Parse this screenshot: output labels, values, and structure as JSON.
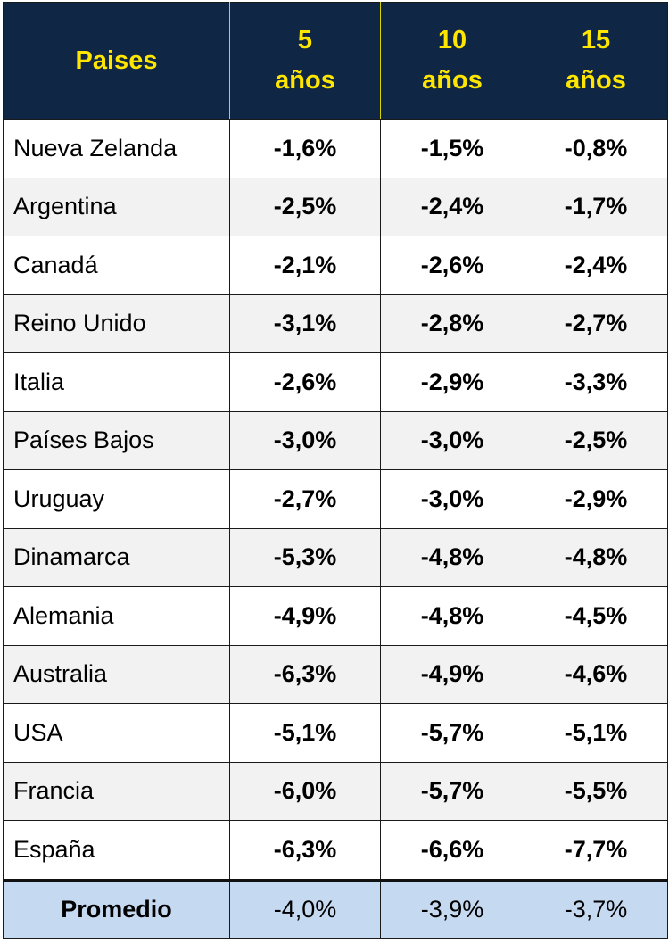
{
  "chart_data": {
    "type": "table",
    "columns": [
      "Paises",
      "5 años",
      "10 años",
      "15 años"
    ],
    "header": {
      "country": "Paises",
      "y5": [
        "5",
        "años"
      ],
      "y10": [
        "10",
        "años"
      ],
      "y15": [
        "15",
        "años"
      ]
    },
    "rows": [
      {
        "country": "Nueva Zelanda",
        "y5": "-1,6%",
        "y10": "-1,5%",
        "y15": "-0,8%"
      },
      {
        "country": "Argentina",
        "y5": "-2,5%",
        "y10": "-2,4%",
        "y15": "-1,7%"
      },
      {
        "country": "Canadá",
        "y5": "-2,1%",
        "y10": "-2,6%",
        "y15": "-2,4%"
      },
      {
        "country": "Reino Unido",
        "y5": "-3,1%",
        "y10": "-2,8%",
        "y15": "-2,7%"
      },
      {
        "country": "Italia",
        "y5": "-2,6%",
        "y10": "-2,9%",
        "y15": "-3,3%"
      },
      {
        "country": "Países Bajos",
        "y5": "-3,0%",
        "y10": "-3,0%",
        "y15": "-2,5%"
      },
      {
        "country": "Uruguay",
        "y5": "-2,7%",
        "y10": "-3,0%",
        "y15": "-2,9%"
      },
      {
        "country": "Dinamarca",
        "y5": "-5,3%",
        "y10": "-4,8%",
        "y15": "-4,8%"
      },
      {
        "country": "Alemania",
        "y5": "-4,9%",
        "y10": "-4,8%",
        "y15": "-4,5%"
      },
      {
        "country": "Australia",
        "y5": "-6,3%",
        "y10": "-4,9%",
        "y15": "-4,6%"
      },
      {
        "country": "USA",
        "y5": "-5,1%",
        "y10": "-5,7%",
        "y15": "-5,1%"
      },
      {
        "country": "Francia",
        "y5": "-6,0%",
        "y10": "-5,7%",
        "y15": "-5,5%"
      },
      {
        "country": "España",
        "y5": "-6,3%",
        "y10": "-6,6%",
        "y15": "-7,7%"
      }
    ],
    "footer": {
      "label": "Promedio",
      "y5": "-4,0%",
      "y10": "-3,9%",
      "y15": "-3,7%"
    },
    "colors": {
      "header_bg": "#0f2645",
      "header_text": "#ffe600",
      "row_alt": "#f2f2f2",
      "footer_bg": "#c5d9f1"
    }
  }
}
